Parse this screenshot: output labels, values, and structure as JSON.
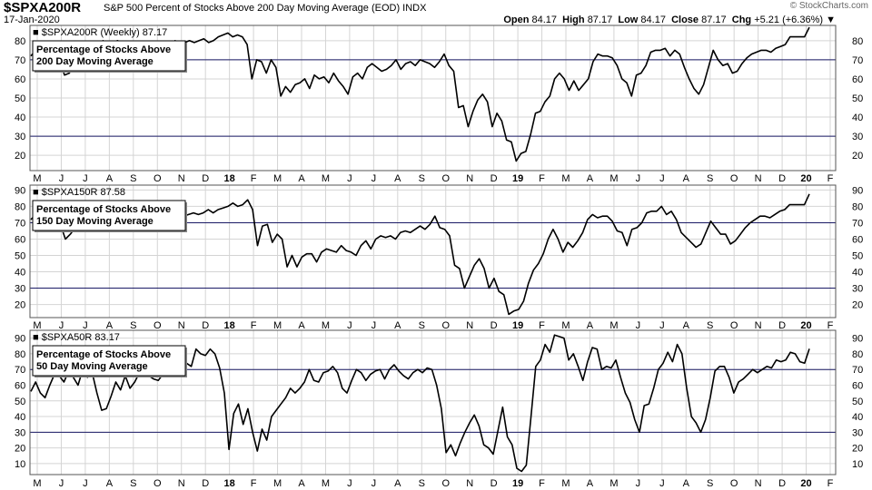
{
  "header": {
    "symbol": "$SPXA200R",
    "description": "S&P 500 Percent of Stocks Above 200 Day Moving Average (EOD)",
    "exchange": "INDX",
    "date": "17-Jan-2020",
    "open_label": "Open",
    "open": "84.17",
    "high_label": "High",
    "high": "87.17",
    "low_label": "Low",
    "low": "84.17",
    "close_label": "Close",
    "close": "87.17",
    "chg_label": "Chg",
    "chg": "+5.21 (+6.36%)",
    "watermark": "© StockCharts.com"
  },
  "colors": {
    "line": "#000000",
    "ref_line": "#1a1a66",
    "grid": "#d4d4d4",
    "frame": "#555555"
  },
  "chart_data": [
    {
      "type": "line",
      "panel_label": "$SPXA200R (Weekly) 87.17",
      "box_label": [
        "Percentage of Stocks Above",
        "200 Day Moving Average"
      ],
      "yticks": [
        20,
        30,
        40,
        50,
        60,
        70,
        80
      ],
      "ylim": [
        12,
        88
      ],
      "ref_lines": [
        70,
        30
      ],
      "series": [
        {
          "values": [
            72,
            75,
            76,
            74,
            72,
            77,
            70,
            62,
            63,
            68,
            72,
            74,
            73,
            74,
            76,
            80,
            77,
            78,
            80,
            79,
            76,
            78,
            73,
            75,
            79,
            77,
            71,
            70,
            74,
            76,
            80,
            78,
            79,
            80,
            79,
            80,
            81,
            79,
            80,
            82,
            83,
            84,
            82,
            83,
            82,
            78,
            60,
            70,
            69,
            63,
            70,
            66,
            51,
            56,
            53,
            57,
            58,
            60,
            55,
            62,
            60,
            61,
            58,
            63,
            59,
            56,
            52,
            61,
            63,
            60,
            66,
            68,
            66,
            64,
            65,
            67,
            70,
            65,
            68,
            69,
            67,
            70,
            69,
            68,
            66,
            69,
            73,
            67,
            64,
            45,
            46,
            35,
            43,
            49,
            52,
            48,
            35,
            42,
            38,
            28,
            27,
            17,
            21,
            22,
            31,
            42,
            43,
            48,
            51,
            60,
            63,
            60,
            54,
            59,
            54,
            57,
            60,
            69,
            73,
            72,
            72,
            71,
            67,
            60,
            58,
            51,
            62,
            63,
            67,
            74,
            75,
            75,
            76,
            72,
            75,
            73,
            66,
            60,
            55,
            52,
            57,
            66,
            75,
            70,
            67,
            68,
            63,
            64,
            68,
            71,
            73,
            74,
            75,
            75,
            74,
            76,
            77,
            78,
            82,
            82,
            82,
            82,
            87
          ]
        }
      ]
    },
    {
      "type": "line",
      "panel_label": "$SPXA150R 87.58",
      "box_label": [
        "Percentage of Stocks Above",
        "150 Day Moving Average"
      ],
      "yticks": [
        20,
        30,
        40,
        50,
        60,
        70,
        80,
        90
      ],
      "ylim": [
        12,
        93
      ],
      "ref_lines": [
        70,
        30
      ],
      "series": [
        {
          "values": [
            72,
            75,
            71,
            70,
            72,
            74,
            69,
            60,
            63,
            67,
            70,
            72,
            72,
            73,
            76,
            78,
            75,
            76,
            78,
            77,
            74,
            76,
            71,
            73,
            77,
            75,
            70,
            68,
            72,
            74,
            76,
            74,
            75,
            76,
            75,
            76,
            78,
            76,
            78,
            79,
            80,
            82,
            80,
            81,
            84,
            78,
            56,
            68,
            69,
            58,
            63,
            60,
            43,
            50,
            43,
            49,
            51,
            51,
            46,
            52,
            54,
            53,
            52,
            56,
            53,
            52,
            50,
            56,
            59,
            54,
            60,
            62,
            61,
            62,
            60,
            64,
            65,
            64,
            66,
            68,
            66,
            69,
            74,
            67,
            66,
            62,
            44,
            42,
            30,
            37,
            44,
            48,
            42,
            30,
            36,
            28,
            26,
            14,
            16,
            17,
            22,
            33,
            41,
            45,
            51,
            60,
            66,
            60,
            52,
            58,
            55,
            59,
            64,
            72,
            75,
            73,
            74,
            74,
            71,
            65,
            64,
            56,
            66,
            67,
            70,
            76,
            77,
            77,
            80,
            75,
            77,
            72,
            64,
            61,
            58,
            55,
            57,
            64,
            71,
            67,
            63,
            63,
            57,
            59,
            63,
            67,
            70,
            72,
            74,
            74,
            73,
            75,
            77,
            78,
            81,
            81,
            81,
            81,
            87.58
          ]
        }
      ]
    },
    {
      "type": "line",
      "panel_label": "$SPXA50R 83.17",
      "box_label": [
        "Percentage of Stocks Above",
        "50 Day Moving Average"
      ],
      "yticks": [
        10,
        20,
        30,
        40,
        50,
        60,
        70,
        80,
        90
      ],
      "ylim": [
        3,
        95
      ],
      "ref_lines": [
        70,
        30
      ],
      "series": [
        {
          "values": [
            56,
            62,
            55,
            52,
            60,
            67,
            66,
            62,
            69,
            65,
            60,
            70,
            65,
            68,
            55,
            44,
            45,
            53,
            62,
            57,
            66,
            58,
            62,
            68,
            70,
            66,
            64,
            63,
            67,
            78,
            74,
            73,
            71,
            74,
            72,
            83,
            80,
            79,
            83,
            80,
            71,
            55,
            19,
            42,
            48,
            35,
            45,
            30,
            18,
            32,
            25,
            40,
            44,
            48,
            52,
            58,
            55,
            58,
            62,
            70,
            63,
            62,
            68,
            69,
            72,
            68,
            58,
            55,
            63,
            70,
            68,
            63,
            67,
            69,
            70,
            64,
            70,
            73,
            69,
            66,
            64,
            68,
            70,
            68,
            71,
            70,
            60,
            45,
            17,
            22,
            15,
            23,
            30,
            36,
            41,
            34,
            22,
            20,
            16,
            31,
            46,
            27,
            22,
            7,
            5,
            9,
            40,
            72,
            76,
            86,
            81,
            92,
            91,
            90,
            76,
            80,
            72,
            63,
            75,
            84,
            83,
            70,
            72,
            71,
            76,
            65,
            55,
            49,
            38,
            30,
            47,
            48,
            58,
            70,
            74,
            81,
            75,
            86,
            80,
            58,
            40,
            36,
            30,
            38,
            52,
            69,
            72,
            72,
            65,
            55,
            62,
            64,
            67,
            70,
            68,
            70,
            72,
            71,
            76,
            75,
            76,
            81,
            80,
            75,
            74,
            83.17
          ]
        }
      ]
    }
  ],
  "x_labels": [
    "M",
    "J",
    "J",
    "A",
    "S",
    "O",
    "N",
    "D",
    "18",
    "F",
    "M",
    "A",
    "M",
    "J",
    "J",
    "A",
    "S",
    "O",
    "N",
    "D",
    "19",
    "F",
    "M",
    "A",
    "M",
    "J",
    "J",
    "A",
    "S",
    "O",
    "N",
    "D",
    "20",
    "F"
  ]
}
